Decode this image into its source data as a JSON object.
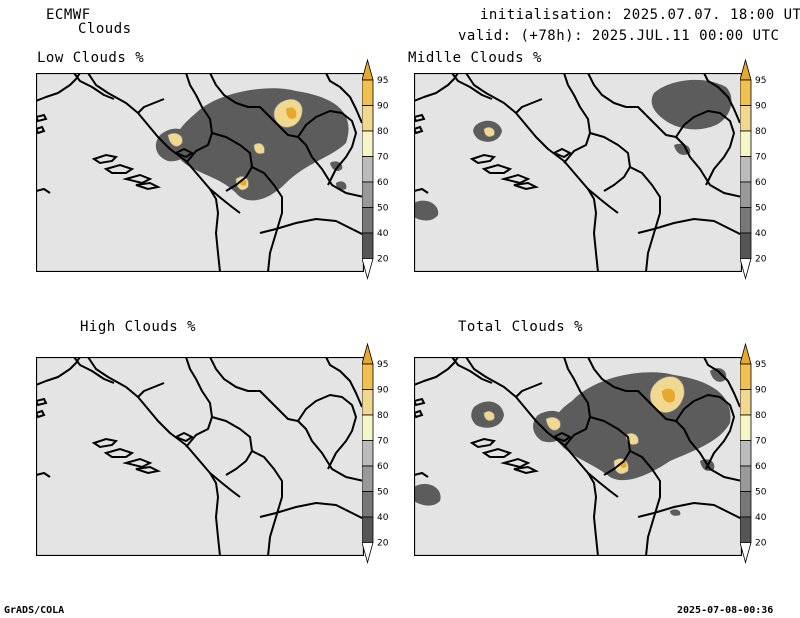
{
  "header": {
    "model": "ECMWF",
    "product": "Clouds",
    "initialisation": "initialisation: 2025.07.07. 18:00 UTC",
    "valid": "valid: (+78h): 2025.JUL.11 00:00 UTC"
  },
  "panels": [
    {
      "key": "low",
      "title": "Low Clouds %"
    },
    {
      "key": "mid",
      "title": "Midlle Clouds %"
    },
    {
      "key": "high",
      "title": "High Clouds %"
    },
    {
      "key": "total",
      "title": "Total Clouds %"
    }
  ],
  "colorbar": {
    "levels": [
      "20",
      "40",
      "50",
      "60",
      "70",
      "80",
      "90",
      "95"
    ],
    "colors": [
      "#ffffff",
      "#555555",
      "#777777",
      "#999999",
      "#bbbbbb",
      "#f5f5c8",
      "#f0d890",
      "#f0c050",
      "#e6a82e"
    ]
  },
  "footer": {
    "left": "GrADS/COLA",
    "right": "2025-07-08-00:36"
  }
}
